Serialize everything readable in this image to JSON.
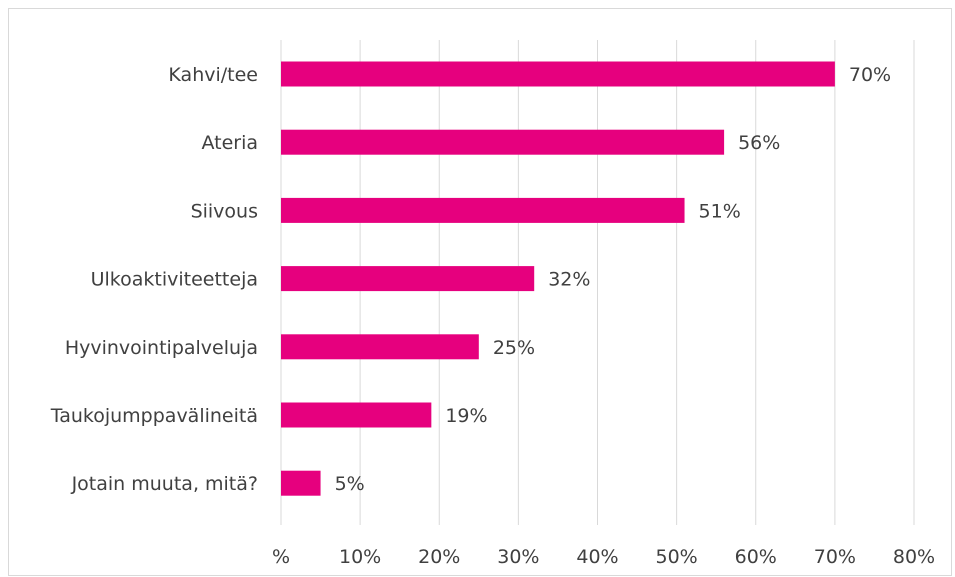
{
  "chart_data": {
    "type": "bar",
    "orientation": "horizontal",
    "categories": [
      "Kahvi/tee",
      "Ateria",
      "Siivous",
      "Ulkoaktiviteetteja",
      "Hyvinvointipalveluja",
      "Taukojumppavälineitä",
      "Jotain muuta, mitä?"
    ],
    "values": [
      70,
      56,
      51,
      32,
      25,
      19,
      5
    ],
    "data_labels": [
      "70%",
      "56%",
      "51%",
      "32%",
      "25%",
      "19%",
      "5%"
    ],
    "x_ticks": [
      0,
      10,
      20,
      30,
      40,
      50,
      60,
      70,
      80
    ],
    "x_tick_labels": [
      "%",
      "10%",
      "20%",
      "30%",
      "40%",
      "50%",
      "60%",
      "70%",
      "80%"
    ],
    "xlim": [
      0,
      80
    ],
    "grid": "vertical",
    "title": "",
    "xlabel": "",
    "ylabel": "",
    "bar_color": "#E6007E",
    "grid_color": "#d9d9d9",
    "text_color": "#404040"
  }
}
